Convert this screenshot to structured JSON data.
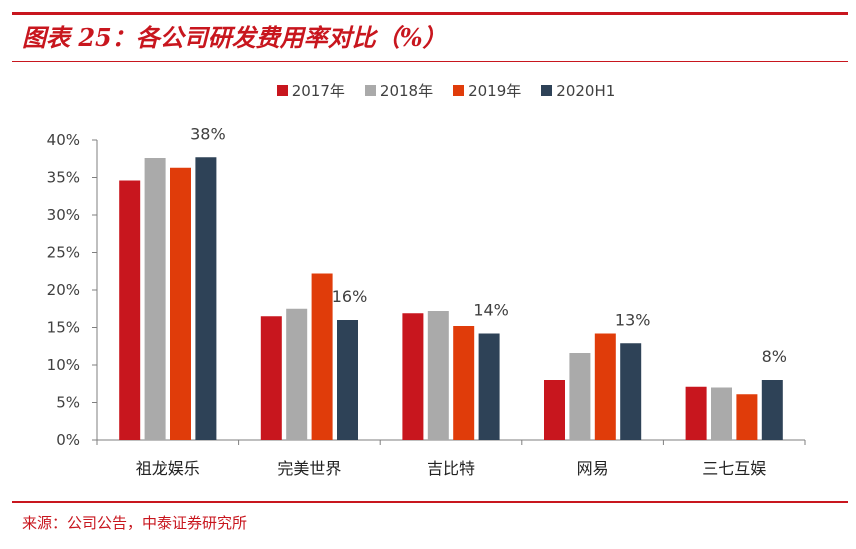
{
  "header": {
    "title": "图表 25：各公司研发费用率对比（%）"
  },
  "footer": {
    "source": "来源：公司公告，中泰证券研究所"
  },
  "colors": {
    "accent": "#c8161e"
  },
  "chart_data": {
    "type": "bar",
    "title": "",
    "xlabel": "",
    "ylabel": "",
    "ylim": [
      0,
      40
    ],
    "yticks": [
      "0%",
      "5%",
      "10%",
      "15%",
      "20%",
      "25%",
      "30%",
      "35%",
      "40%"
    ],
    "categories": [
      "祖龙娱乐",
      "完美世界",
      "吉比特",
      "网易",
      "三七互娱"
    ],
    "series": [
      {
        "name": "2017年",
        "color": "#c8161e",
        "values": [
          34.6,
          16.5,
          16.9,
          8.0,
          7.1
        ]
      },
      {
        "name": "2018年",
        "color": "#aaaaaa",
        "values": [
          37.6,
          17.5,
          17.2,
          11.6,
          7.0
        ]
      },
      {
        "name": "2019年",
        "color": "#e03c0a",
        "values": [
          36.3,
          22.2,
          15.2,
          14.2,
          6.1
        ]
      },
      {
        "name": "2020H1",
        "color": "#2e4257",
        "values": [
          37.7,
          16.0,
          14.2,
          12.9,
          8.0
        ]
      }
    ],
    "annotations": [
      "38%",
      "16%",
      "14%",
      "13%",
      "8%"
    ],
    "grid": false,
    "legend_position": "top"
  }
}
